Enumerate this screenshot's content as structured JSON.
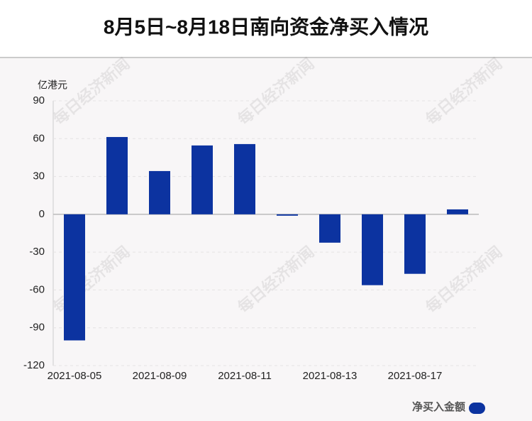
{
  "chart_data": {
    "type": "bar",
    "title": "8月5日~8月18日南向资金净买入情况",
    "y_axis_label": "亿港元",
    "watermark": "每日经济新闻",
    "categories": [
      "2021-08-05",
      null,
      "2021-08-09",
      null,
      "2021-08-11",
      null,
      "2021-08-13",
      null,
      "2021-08-17",
      null
    ],
    "series": [
      {
        "name": "净买入金额",
        "color": "#0c33a0",
        "values": [
          -100,
          61.3,
          34.3,
          54.6,
          55.7,
          -1.1,
          -22.5,
          -56.2,
          -47.2,
          3.9
        ]
      }
    ],
    "ylim": [
      -120,
      90
    ],
    "yticks": [
      -120,
      -90,
      -60,
      -30,
      0,
      30,
      60,
      90
    ],
    "grid": true,
    "legend": "bottom-right"
  }
}
